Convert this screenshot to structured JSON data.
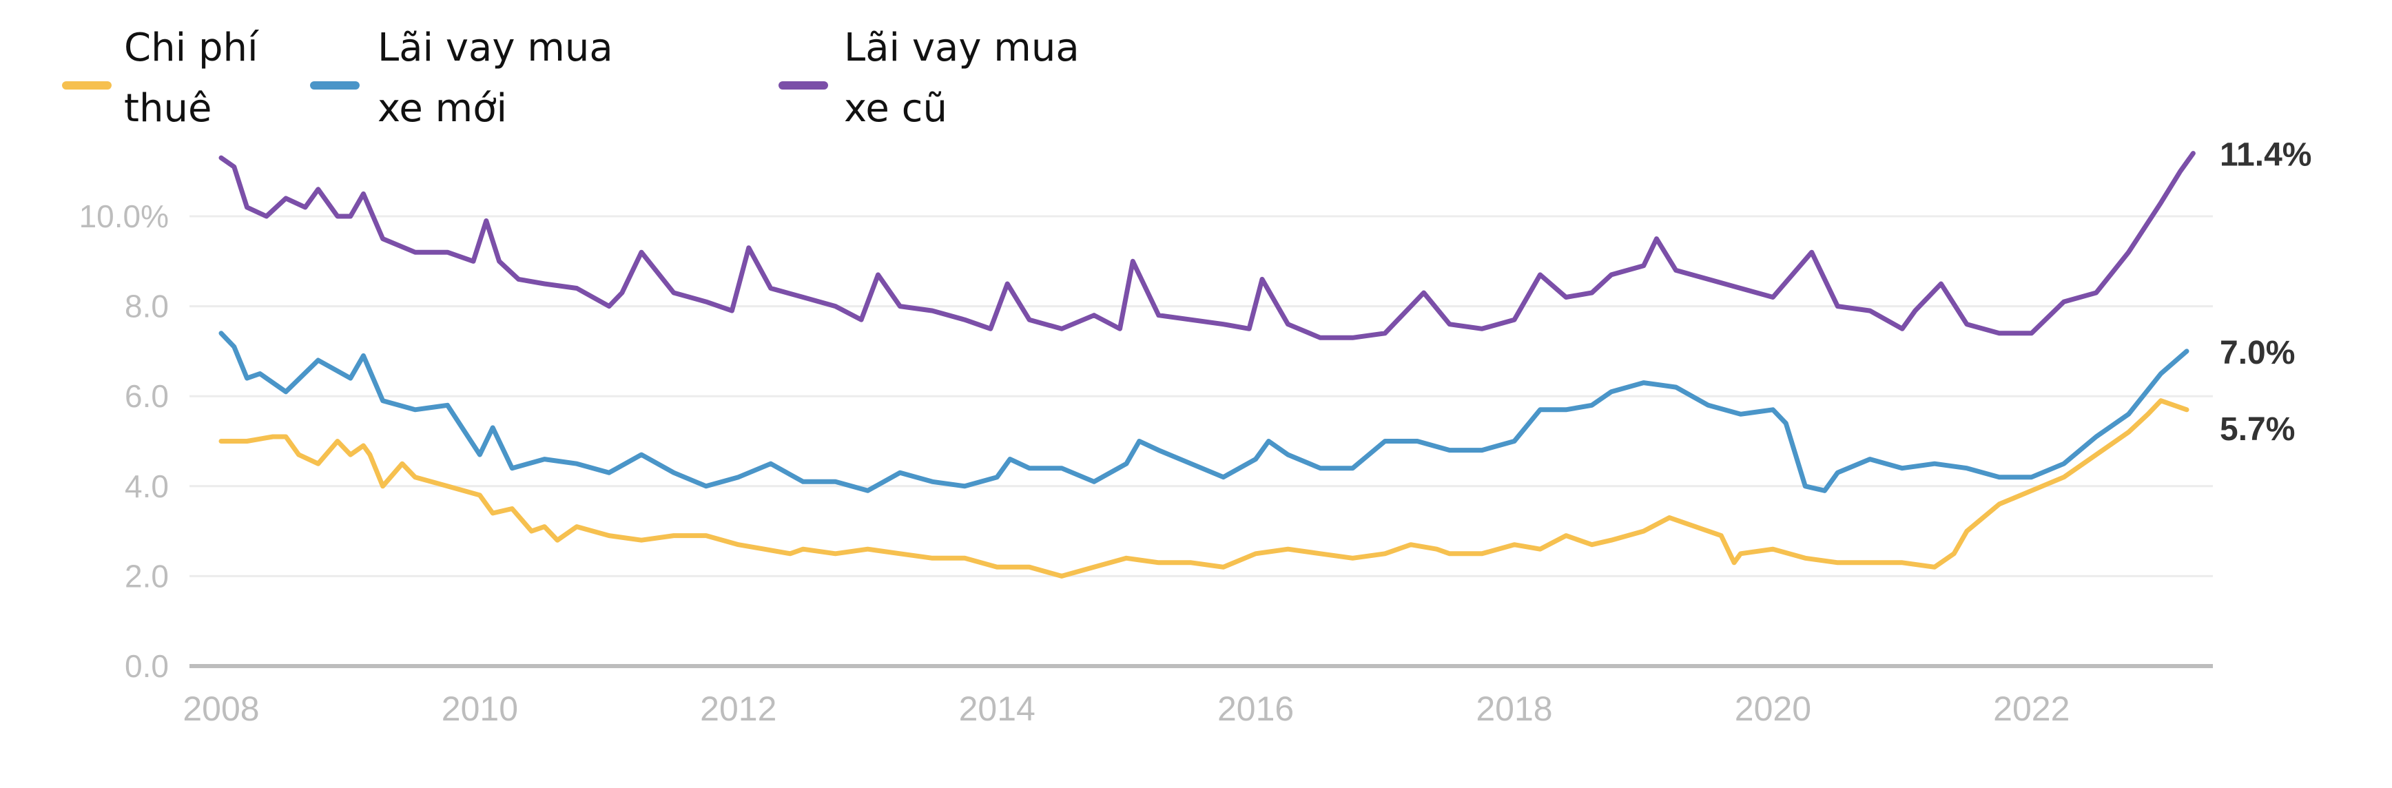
{
  "legend": [
    {
      "label": "Chi phí\nthuê",
      "color": "#f6c04f"
    },
    {
      "label": "Lãi vay mua\nxe mới",
      "color": "#4a95c8"
    },
    {
      "label": "Lãi vay mua\nxe cũ",
      "color": "#7b4fa8"
    }
  ],
  "end_labels": {
    "used": "11.4%",
    "new": "7.0%",
    "lease": "5.7%"
  },
  "chart_data": {
    "type": "line",
    "title": "",
    "xlabel": "",
    "ylabel": "",
    "xlim": [
      2008,
      2023.3
    ],
    "ylim": [
      0,
      11.5
    ],
    "x_ticks": [
      "2008",
      "2010",
      "2012",
      "2014",
      "2016",
      "2018",
      "2020",
      "2022"
    ],
    "x_tick_values": [
      2008,
      2010,
      2012,
      2014,
      2016,
      2018,
      2020,
      2022
    ],
    "y_ticks": [
      "10.0%",
      "8.0",
      "6.0",
      "4.0",
      "2.0",
      "0.0"
    ],
    "y_tick_values": [
      10,
      8,
      6,
      4,
      2,
      0
    ],
    "grid": true,
    "legend_position": "top-left",
    "series": [
      {
        "name": "Chi phí thuê",
        "color": "#f6c04f",
        "end_label": "5.7%",
        "x": [
          2008.0,
          2008.2,
          2008.4,
          2008.5,
          2008.6,
          2008.75,
          2008.9,
          2009.0,
          2009.1,
          2009.15,
          2009.25,
          2009.4,
          2009.5,
          2009.75,
          2010.0,
          2010.1,
          2010.25,
          2010.4,
          2010.5,
          2010.6,
          2010.75,
          2011.0,
          2011.25,
          2011.5,
          2011.75,
          2012.0,
          2012.2,
          2012.4,
          2012.5,
          2012.75,
          2013.0,
          2013.25,
          2013.5,
          2013.75,
          2014.0,
          2014.25,
          2014.5,
          2014.75,
          2015.0,
          2015.25,
          2015.5,
          2015.75,
          2016.0,
          2016.25,
          2016.5,
          2016.75,
          2017.0,
          2017.2,
          2017.4,
          2017.5,
          2017.75,
          2018.0,
          2018.2,
          2018.4,
          2018.6,
          2018.75,
          2019.0,
          2019.2,
          2019.4,
          2019.6,
          2019.7,
          2019.75,
          2020.0,
          2020.25,
          2020.5,
          2020.75,
          2021.0,
          2021.25,
          2021.4,
          2021.5,
          2021.75,
          2022.0,
          2022.25,
          2022.5,
          2022.75,
          2022.9,
          2023.0,
          2023.2
        ],
        "values": [
          5.0,
          5.0,
          5.1,
          5.1,
          4.7,
          4.5,
          5.0,
          4.7,
          4.9,
          4.7,
          4.0,
          4.5,
          4.2,
          4.0,
          3.8,
          3.4,
          3.5,
          3.0,
          3.1,
          2.8,
          3.1,
          2.9,
          2.8,
          2.9,
          2.9,
          2.7,
          2.6,
          2.5,
          2.6,
          2.5,
          2.6,
          2.5,
          2.4,
          2.4,
          2.2,
          2.2,
          2.0,
          2.2,
          2.4,
          2.3,
          2.3,
          2.2,
          2.5,
          2.6,
          2.5,
          2.4,
          2.5,
          2.7,
          2.6,
          2.5,
          2.5,
          2.7,
          2.6,
          2.9,
          2.7,
          2.8,
          3.0,
          3.3,
          3.1,
          2.9,
          2.3,
          2.5,
          2.6,
          2.4,
          2.3,
          2.3,
          2.3,
          2.2,
          2.5,
          3.0,
          3.6,
          3.9,
          4.2,
          4.7,
          5.2,
          5.6,
          5.9,
          5.7
        ]
      },
      {
        "name": "Lãi vay mua xe mới",
        "color": "#4a95c8",
        "end_label": "7.0%",
        "x": [
          2008.0,
          2008.1,
          2008.2,
          2008.3,
          2008.5,
          2008.75,
          2009.0,
          2009.1,
          2009.25,
          2009.5,
          2009.75,
          2010.0,
          2010.1,
          2010.25,
          2010.5,
          2010.75,
          2011.0,
          2011.25,
          2011.5,
          2011.75,
          2012.0,
          2012.25,
          2012.5,
          2012.75,
          2013.0,
          2013.25,
          2013.5,
          2013.75,
          2014.0,
          2014.1,
          2014.25,
          2014.5,
          2014.75,
          2015.0,
          2015.1,
          2015.25,
          2015.5,
          2015.75,
          2016.0,
          2016.1,
          2016.25,
          2016.5,
          2016.75,
          2017.0,
          2017.25,
          2017.5,
          2017.75,
          2018.0,
          2018.2,
          2018.4,
          2018.6,
          2018.75,
          2019.0,
          2019.25,
          2019.5,
          2019.75,
          2020.0,
          2020.1,
          2020.25,
          2020.4,
          2020.5,
          2020.75,
          2021.0,
          2021.25,
          2021.5,
          2021.75,
          2022.0,
          2022.25,
          2022.5,
          2022.75,
          2023.0,
          2023.2
        ],
        "values": [
          7.4,
          7.1,
          6.4,
          6.5,
          6.1,
          6.8,
          6.4,
          6.9,
          5.9,
          5.7,
          5.8,
          4.7,
          5.3,
          4.4,
          4.6,
          4.5,
          4.3,
          4.7,
          4.3,
          4.0,
          4.2,
          4.5,
          4.1,
          4.1,
          3.9,
          4.3,
          4.1,
          4.0,
          4.2,
          4.6,
          4.4,
          4.4,
          4.1,
          4.5,
          5.0,
          4.8,
          4.5,
          4.2,
          4.6,
          5.0,
          4.7,
          4.4,
          4.4,
          5.0,
          5.0,
          4.8,
          4.8,
          5.0,
          5.7,
          5.7,
          5.8,
          6.1,
          6.3,
          6.2,
          5.8,
          5.6,
          5.7,
          5.4,
          4.0,
          3.9,
          4.3,
          4.6,
          4.4,
          4.5,
          4.4,
          4.2,
          4.2,
          4.5,
          5.1,
          5.6,
          6.5,
          7.0
        ]
      },
      {
        "name": "Lãi vay mua xe cũ",
        "color": "#7b4fa8",
        "end_label": "11.4%",
        "x": [
          2008.0,
          2008.1,
          2008.2,
          2008.35,
          2008.5,
          2008.65,
          2008.75,
          2008.9,
          2009.0,
          2009.1,
          2009.25,
          2009.5,
          2009.75,
          2009.95,
          2010.05,
          2010.15,
          2010.3,
          2010.5,
          2010.75,
          2011.0,
          2011.1,
          2011.25,
          2011.5,
          2011.75,
          2011.95,
          2012.08,
          2012.25,
          2012.5,
          2012.75,
          2012.95,
          2013.08,
          2013.25,
          2013.5,
          2013.75,
          2013.95,
          2014.08,
          2014.25,
          2014.5,
          2014.75,
          2014.95,
          2015.05,
          2015.25,
          2015.5,
          2015.75,
          2015.95,
          2016.05,
          2016.25,
          2016.5,
          2016.75,
          2017.0,
          2017.3,
          2017.5,
          2017.75,
          2018.0,
          2018.2,
          2018.4,
          2018.6,
          2018.75,
          2019.0,
          2019.1,
          2019.25,
          2019.5,
          2019.75,
          2020.0,
          2020.3,
          2020.5,
          2020.75,
          2021.0,
          2021.1,
          2021.3,
          2021.5,
          2021.75,
          2022.0,
          2022.25,
          2022.5,
          2022.75,
          2023.0,
          2023.15,
          2023.25
        ],
        "values": [
          11.3,
          11.1,
          10.2,
          10.0,
          10.4,
          10.2,
          10.6,
          10.0,
          10.0,
          10.5,
          9.5,
          9.2,
          9.2,
          9.0,
          9.9,
          9.0,
          8.6,
          8.5,
          8.4,
          8.0,
          8.3,
          9.2,
          8.3,
          8.1,
          7.9,
          9.3,
          8.4,
          8.2,
          8.0,
          7.7,
          8.7,
          8.0,
          7.9,
          7.7,
          7.5,
          8.5,
          7.7,
          7.5,
          7.8,
          7.5,
          9.0,
          7.8,
          7.7,
          7.6,
          7.5,
          8.6,
          7.6,
          7.3,
          7.3,
          7.4,
          8.3,
          7.6,
          7.5,
          7.7,
          8.7,
          8.2,
          8.3,
          8.7,
          8.9,
          9.5,
          8.8,
          8.6,
          8.4,
          8.2,
          9.2,
          8.0,
          7.9,
          7.5,
          7.9,
          8.5,
          7.6,
          7.4,
          7.4,
          8.1,
          8.3,
          9.2,
          10.3,
          11.0,
          11.4
        ]
      }
    ]
  }
}
